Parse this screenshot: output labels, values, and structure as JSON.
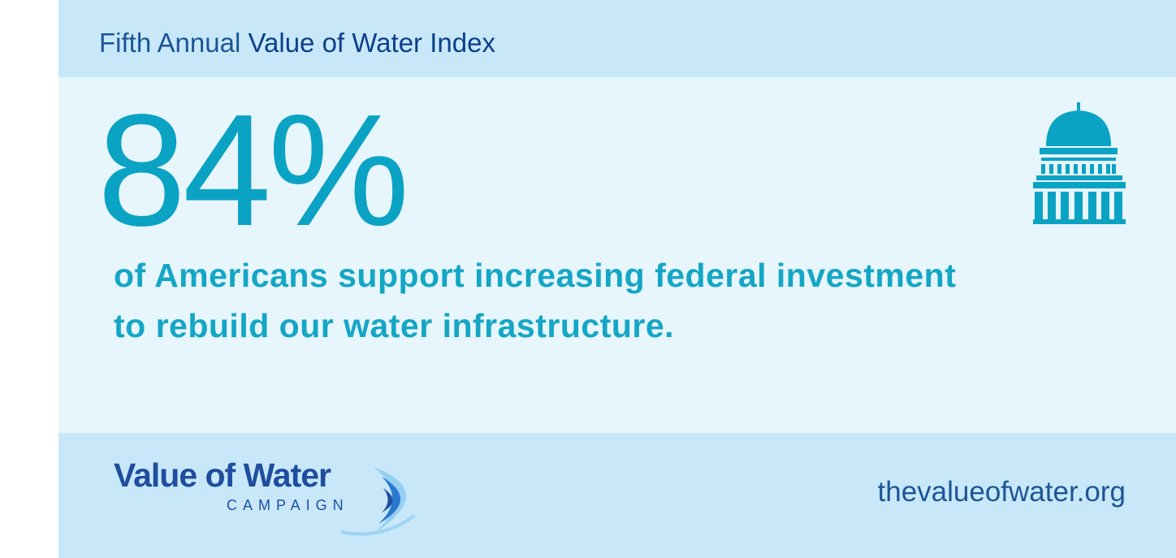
{
  "header": {
    "prefix": "Fifth Annual",
    "title": "Value of Water Index"
  },
  "stat": {
    "value": "84%",
    "lines": [
      "of Americans support increasing federal investment",
      "to rebuild our water infrastructure."
    ]
  },
  "footer": {
    "logo": {
      "name": "Value of Water",
      "sub": "CAMPAIGN"
    },
    "url": "thevalueofwater.org"
  }
}
